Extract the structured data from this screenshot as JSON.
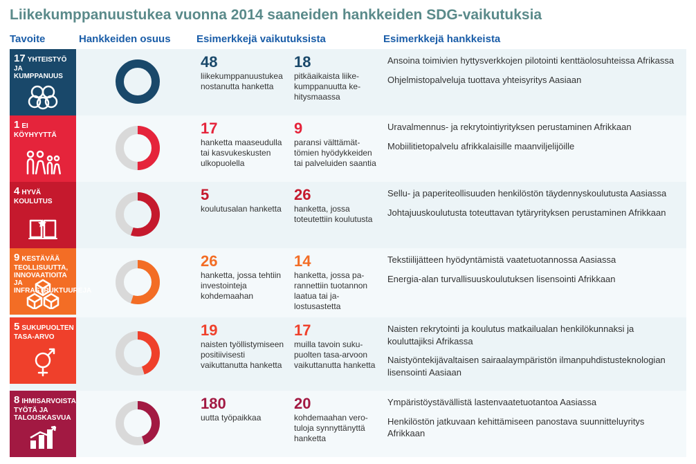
{
  "title": "Liikekumppanuustukea vuonna 2014 saaneiden hankkeiden SDG-vaikutuksia",
  "headers": {
    "goal": "Tavoite",
    "share": "Hankkeiden osuus",
    "effects": "Esimerkkejä vaikutuksista",
    "projects": "Esimerkkejä hankkeista"
  },
  "rows": [
    {
      "sdg_num": "17",
      "sdg_label": "YHTEISTYÖ JA KUMPPANUUS",
      "sdg_color": "#19486a",
      "sdg_icon": "rings",
      "donut": {
        "pct": 100,
        "color": "#19486a",
        "track": "#ffffff"
      },
      "stat1_num": "48",
      "stat1_txt": "liike­kump­panuus­tukea nostanutta hanketta",
      "stat2_num": "18",
      "stat2_txt": "pitkäaikaista liike­kump­panuutta ke­hitysmaassa",
      "proj1": "Ansoina toimivien hyttysverkkojen pilotointi kenttäolosuhteissa Afrikassa",
      "proj2": "Ohjelmistopalveluja tuottava yhteisyritys Aasiaan",
      "accent": "#19486a",
      "row_class": "row-light"
    },
    {
      "sdg_num": "1",
      "sdg_label": "EI KÖYHYYTTÄ",
      "sdg_color": "#e5243b",
      "sdg_icon": "family",
      "donut": {
        "pct": 50,
        "color": "#e5243b",
        "track": "#d9d9d9"
      },
      "stat1_num": "17",
      "stat1_txt": "hanketta maaseu­dulla tai kasvukes­kusten ulkopuolella",
      "stat2_num": "9",
      "stat2_txt": "paransi välttämät­tömien hyödykkei­den tai palveluiden saantia",
      "proj1": "Uravalmennus- ja rekrytointiyrityksen perustaminen Afrikkaan",
      "proj2": "Mobiilitietopalvelu afrikkalaisille maanviljelijöille",
      "accent": "#e5243b",
      "row_class": "row-lighter"
    },
    {
      "sdg_num": "4",
      "sdg_label": "HYVÄ KOULUTUS",
      "sdg_color": "#c5192d",
      "sdg_icon": "book",
      "donut": {
        "pct": 55,
        "color": "#c5192d",
        "track": "#d9d9d9"
      },
      "stat1_num": "5",
      "stat1_txt": "koulutusalan hanketta",
      "stat2_num": "26",
      "stat2_txt": "hanketta, jossa toteutettiin koulu­tusta",
      "proj1": "Sellu- ja paperiteollisuuden henkilöstön täydennyskoulutusta Aasiassa",
      "proj2": "Johtajuuskoulutusta toteuttavan tytäryrityksen perustaminen Afrikkaan",
      "accent": "#c5192d",
      "row_class": "row-light"
    },
    {
      "sdg_num": "9",
      "sdg_label": "KESTÄVÄÄ TEOLLISUUTTA, INNOVAATIOITA JA INFRASTRUKTUUREJA",
      "sdg_color": "#f36d25",
      "sdg_icon": "cubes",
      "donut": {
        "pct": 55,
        "color": "#f36d25",
        "track": "#d9d9d9"
      },
      "stat1_num": "26",
      "stat1_txt": "hanketta, jossa tehtiin investoin­teja kohdemaahan",
      "stat2_num": "14",
      "stat2_txt": "hanketta, jossa pa­rannettiin tuotan­non laatua tai ja­lostusastetta",
      "proj1": "Tekstiilijätteen hyödyntämistä vaatetuotannossa Aasiassa",
      "proj2": "Energia-alan turvallisuuskoulutuksen lisensointi Afrikkaan",
      "accent": "#f36d25",
      "row_class": "row-lighter"
    },
    {
      "sdg_num": "5",
      "sdg_label": "SUKUPUOLTEN TASA-ARVO",
      "sdg_color": "#ef402b",
      "sdg_icon": "gender",
      "donut": {
        "pct": 45,
        "color": "#ef402b",
        "track": "#d9d9d9"
      },
      "stat1_num": "19",
      "stat1_txt": "naisten työllistymi­seen positiivisesti vaikuttanutta han­ketta",
      "stat2_num": "17",
      "stat2_txt": "muilla tavoin suku­puolten tasa-ar­voon vaikuttanutta hanketta",
      "proj1": "Naisten rekrytointi ja koulutus matkailualan henkilökunnaksi ja kouluttajiksi Afrikassa",
      "proj2": "Naistyöntekijävaltaisen sairaalaympäristön ilmanpuhdistustek­nologian lisensointi Aasiaan",
      "accent": "#ef402b",
      "row_class": "row-light"
    },
    {
      "sdg_num": "8",
      "sdg_label": "IHMISARVOISTA TYÖTÄ JA TALOUSKASVUA",
      "sdg_color": "#a21942",
      "sdg_icon": "bars",
      "donut": {
        "pct": 45,
        "color": "#a21942",
        "track": "#d9d9d9"
      },
      "stat1_num": "180",
      "stat1_txt": "uutta työpaikkaa",
      "stat2_num": "20",
      "stat2_txt": "kohdemaahan vero­tuloja synnyttä­nyttä hanketta",
      "proj1": "Ympäristöystävällistä lastenvaatetuotantoa Aasiassa",
      "proj2": "Henkilöstön jatkuvaan kehittämiseen panostava suunnitteluyri­tys Afrikkaan",
      "accent": "#a21942",
      "row_class": "row-lighter"
    }
  ]
}
